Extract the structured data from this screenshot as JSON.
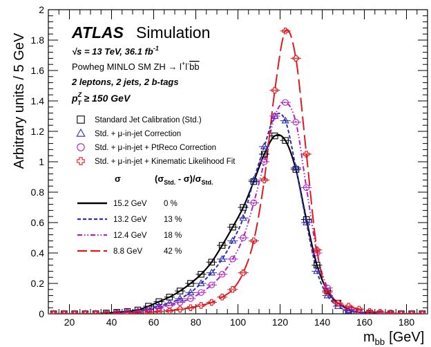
{
  "chart_data": {
    "type": "scatter",
    "xlabel_main": "m",
    "xlabel_sub": "bb",
    "xlabel_unit": "[GeV]",
    "ylabel": "Arbitrary units / 5 GeV",
    "xlim": [
      10,
      190
    ],
    "ylim": [
      0,
      2
    ],
    "x_ticks": [
      20,
      40,
      60,
      80,
      100,
      120,
      140,
      160,
      180
    ],
    "y_ticks": [
      0,
      0.2,
      0.4,
      0.6,
      0.8,
      1,
      1.2,
      1.4,
      1.6,
      1.8,
      2
    ],
    "y_tick_labels": [
      "0",
      "0.2",
      "0.4",
      "0.6",
      "0.8",
      "1",
      "1.2",
      "1.4",
      "1.6",
      "1.8",
      "2"
    ],
    "x_tick_labels": [
      "20",
      "40",
      "60",
      "80",
      "100",
      "120",
      "140",
      "160",
      "180"
    ],
    "grid": false,
    "annotations": {
      "atlas": "ATLAS",
      "simulation": "Simulation",
      "energy_sqrt": "√s = 13 TeV, 36.1 fb",
      "energy_sup": "-1",
      "generator": "Powheg MINLO SM ZH → l",
      "generator_tail": "bb",
      "selection": "2 leptons, 2 jets, 2 b-tags",
      "ptz_cut": "p",
      "ptz_sup": "Z",
      "ptz_sub": "T",
      "ptz_val": " ≥ 150 GeV"
    },
    "legend_placement": "left",
    "table_header_sigma": "σ",
    "table_header_diff": "(σ",
    "table_header_diff_sub1": "Std.",
    "table_header_diff_mid": " - σ)/σ",
    "table_header_diff_sub2": "Std.",
    "x": [
      12.5,
      17.5,
      22.5,
      27.5,
      32.5,
      37.5,
      42.5,
      47.5,
      52.5,
      57.5,
      62.5,
      67.5,
      72.5,
      77.5,
      82.5,
      87.5,
      92.5,
      97.5,
      102.5,
      107.5,
      112.5,
      117.5,
      122.5,
      127.5,
      132.5,
      137.5,
      142.5,
      147.5,
      152.5,
      157.5,
      162.5,
      167.5,
      172.5,
      177.5,
      182.5,
      187.5
    ],
    "series": [
      {
        "name": "Standard Jet Calibration (Std.)",
        "marker": "square",
        "color": "#000000",
        "line_style": "solid",
        "resolution": "15.2 GeV",
        "improvement": "0 %",
        "values": [
          0,
          0,
          0,
          0,
          0,
          0.005,
          0.01,
          0.015,
          0.025,
          0.05,
          0.08,
          0.11,
          0.15,
          0.2,
          0.26,
          0.34,
          0.45,
          0.57,
          0.7,
          0.87,
          1.05,
          1.17,
          1.14,
          0.95,
          0.62,
          0.32,
          0.15,
          0.07,
          0.03,
          0.01,
          0.005,
          0,
          0,
          0,
          0,
          0
        ]
      },
      {
        "name": "Std. + μ-in-jet Correction",
        "marker": "triangle",
        "color": "#2b2bb5",
        "line_style": "dashed",
        "resolution": "13.2 GeV",
        "improvement": "13 %",
        "values": [
          0,
          0,
          0,
          0,
          0,
          0,
          0.005,
          0.01,
          0.015,
          0.03,
          0.05,
          0.07,
          0.1,
          0.14,
          0.2,
          0.27,
          0.36,
          0.48,
          0.63,
          0.88,
          1.1,
          1.3,
          1.27,
          0.96,
          0.6,
          0.28,
          0.12,
          0.05,
          0.02,
          0.01,
          0,
          0,
          0,
          0,
          0,
          0
        ]
      },
      {
        "name": "Std. + μ-in-jet + PtReco Correction",
        "marker": "circle",
        "color": "#b21fbf",
        "line_style": "dash-dot-dot",
        "resolution": "12.4 GeV",
        "improvement": "18 %",
        "values": [
          0,
          0,
          0,
          0,
          0,
          0,
          0.005,
          0.01,
          0.015,
          0.025,
          0.04,
          0.055,
          0.075,
          0.1,
          0.14,
          0.19,
          0.26,
          0.36,
          0.5,
          0.73,
          1.0,
          1.3,
          1.39,
          1.26,
          0.83,
          0.4,
          0.17,
          0.07,
          0.03,
          0.01,
          0,
          0,
          0,
          0,
          0,
          0
        ]
      },
      {
        "name": "Std. + μ-in-jet + Kinematic Likelihood Fit",
        "marker": "cross",
        "color": "#e0181e",
        "line_style": "long-dash",
        "resolution": "8.8 GeV",
        "improvement": "42 %",
        "values": [
          0,
          0,
          0,
          0,
          0,
          0,
          0,
          0,
          0.005,
          0.01,
          0.015,
          0.02,
          0.03,
          0.04,
          0.055,
          0.075,
          0.11,
          0.16,
          0.27,
          0.48,
          0.88,
          1.47,
          1.86,
          1.68,
          1.05,
          0.42,
          0.14,
          0.07,
          0.05,
          0.03,
          0.015,
          0.01,
          0.005,
          0,
          0,
          0
        ]
      }
    ]
  }
}
